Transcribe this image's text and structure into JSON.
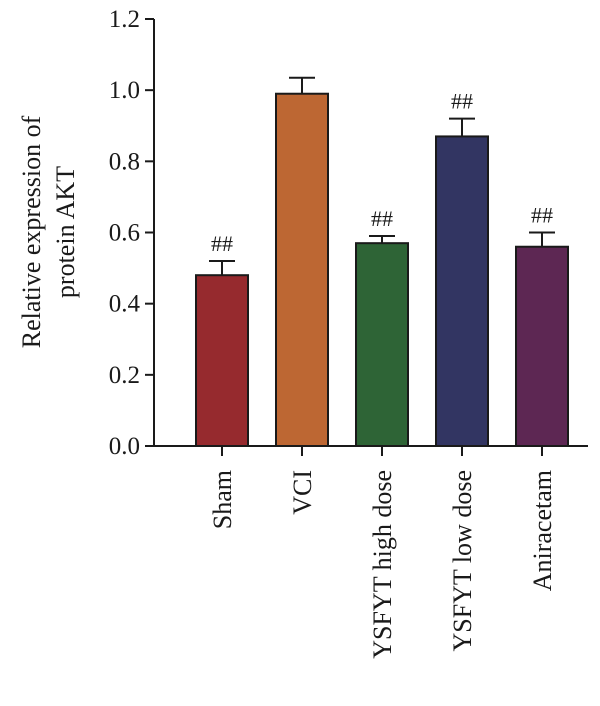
{
  "chart_data": {
    "type": "bar",
    "title": "",
    "xlabel": "",
    "ylabel_lines": [
      "Relative expression of",
      "protein AKT"
    ],
    "categories": [
      "Sham",
      "VCI",
      "YSFYT high dose",
      "YSFYT low dose",
      "Aniracetam"
    ],
    "values": [
      0.48,
      0.99,
      0.57,
      0.87,
      0.56
    ],
    "errors": [
      0.04,
      0.045,
      0.02,
      0.05,
      0.04
    ],
    "annotations": [
      "##",
      "",
      "##",
      "##",
      "##"
    ],
    "colors": [
      "#962a2e",
      "#bd6733",
      "#2e6436",
      "#323562",
      "#5d2753"
    ],
    "ylim": [
      0,
      1.2
    ],
    "yticks": [
      "0.0",
      "0.2",
      "0.4",
      "0.6",
      "0.8",
      "1.0",
      "1.2"
    ],
    "grid": false,
    "legend": "none"
  }
}
